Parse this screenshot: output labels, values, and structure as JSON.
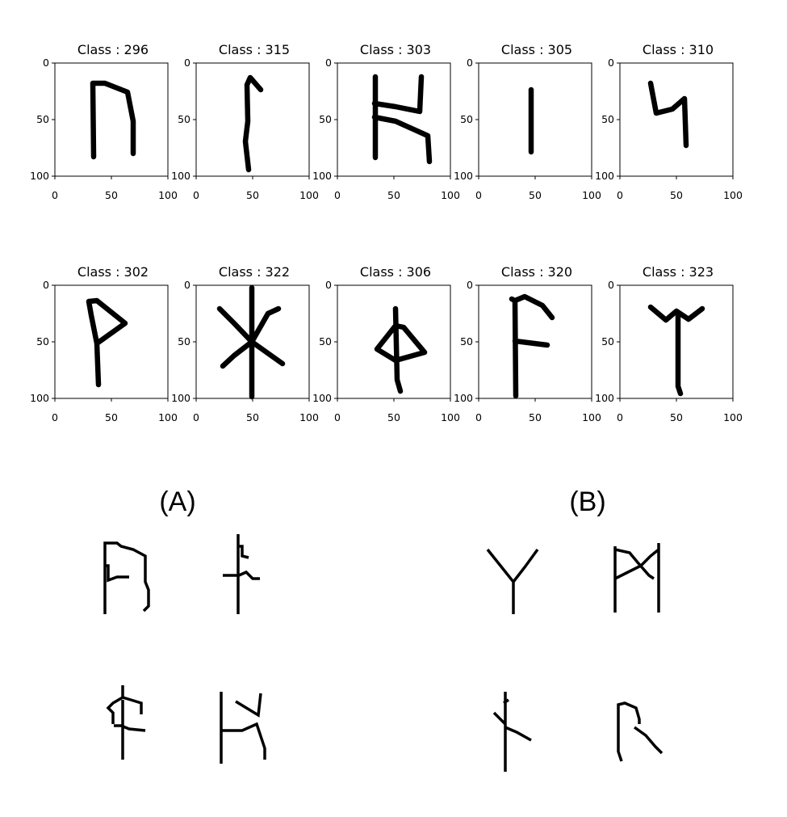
{
  "top_grid": {
    "tick_labels": [
      "0",
      "50",
      "100"
    ],
    "panels": [
      {
        "title": "Class : 296"
      },
      {
        "title": "Class : 315"
      },
      {
        "title": "Class : 303"
      },
      {
        "title": "Class : 305"
      },
      {
        "title": "Class : 310"
      },
      {
        "title": "Class : 302"
      },
      {
        "title": "Class : 322"
      },
      {
        "title": "Class : 306"
      },
      {
        "title": "Class : 320"
      },
      {
        "title": "Class : 323"
      }
    ]
  },
  "section_a": {
    "label": "(A)"
  },
  "section_b": {
    "label": "(B)"
  }
}
